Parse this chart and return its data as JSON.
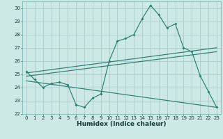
{
  "x": [
    0,
    1,
    2,
    3,
    4,
    5,
    6,
    7,
    8,
    9,
    10,
    11,
    12,
    13,
    14,
    15,
    16,
    17,
    18,
    19,
    20,
    21,
    22,
    23
  ],
  "line1": [
    25.2,
    24.6,
    24.0,
    24.3,
    24.4,
    24.2,
    22.7,
    22.5,
    23.2,
    23.5,
    26.0,
    27.5,
    27.7,
    28.0,
    29.2,
    30.2,
    29.5,
    28.5,
    28.8,
    27.0,
    26.7,
    24.9,
    23.7,
    22.5
  ],
  "line_upper": [
    [
      0,
      25.1
    ],
    [
      23,
      27.0
    ]
  ],
  "line_mid": [
    [
      0,
      24.85
    ],
    [
      23,
      26.7
    ]
  ],
  "line_lower": [
    [
      0,
      24.5
    ],
    [
      23,
      22.5
    ]
  ],
  "background_color": "#cce9e5",
  "grid_color": "#aaccca",
  "line_color": "#2a7d70",
  "xlim": [
    -0.5,
    23.5
  ],
  "ylim": [
    22,
    30.5
  ],
  "yticks": [
    22,
    23,
    24,
    25,
    26,
    27,
    28,
    29,
    30
  ],
  "xticks": [
    0,
    1,
    2,
    3,
    4,
    5,
    6,
    7,
    8,
    9,
    10,
    11,
    12,
    13,
    14,
    15,
    16,
    17,
    18,
    19,
    20,
    21,
    22,
    23
  ],
  "xlabel": "Humidex (Indice chaleur)",
  "tick_fontsize": 5.0,
  "label_fontsize": 6.5
}
